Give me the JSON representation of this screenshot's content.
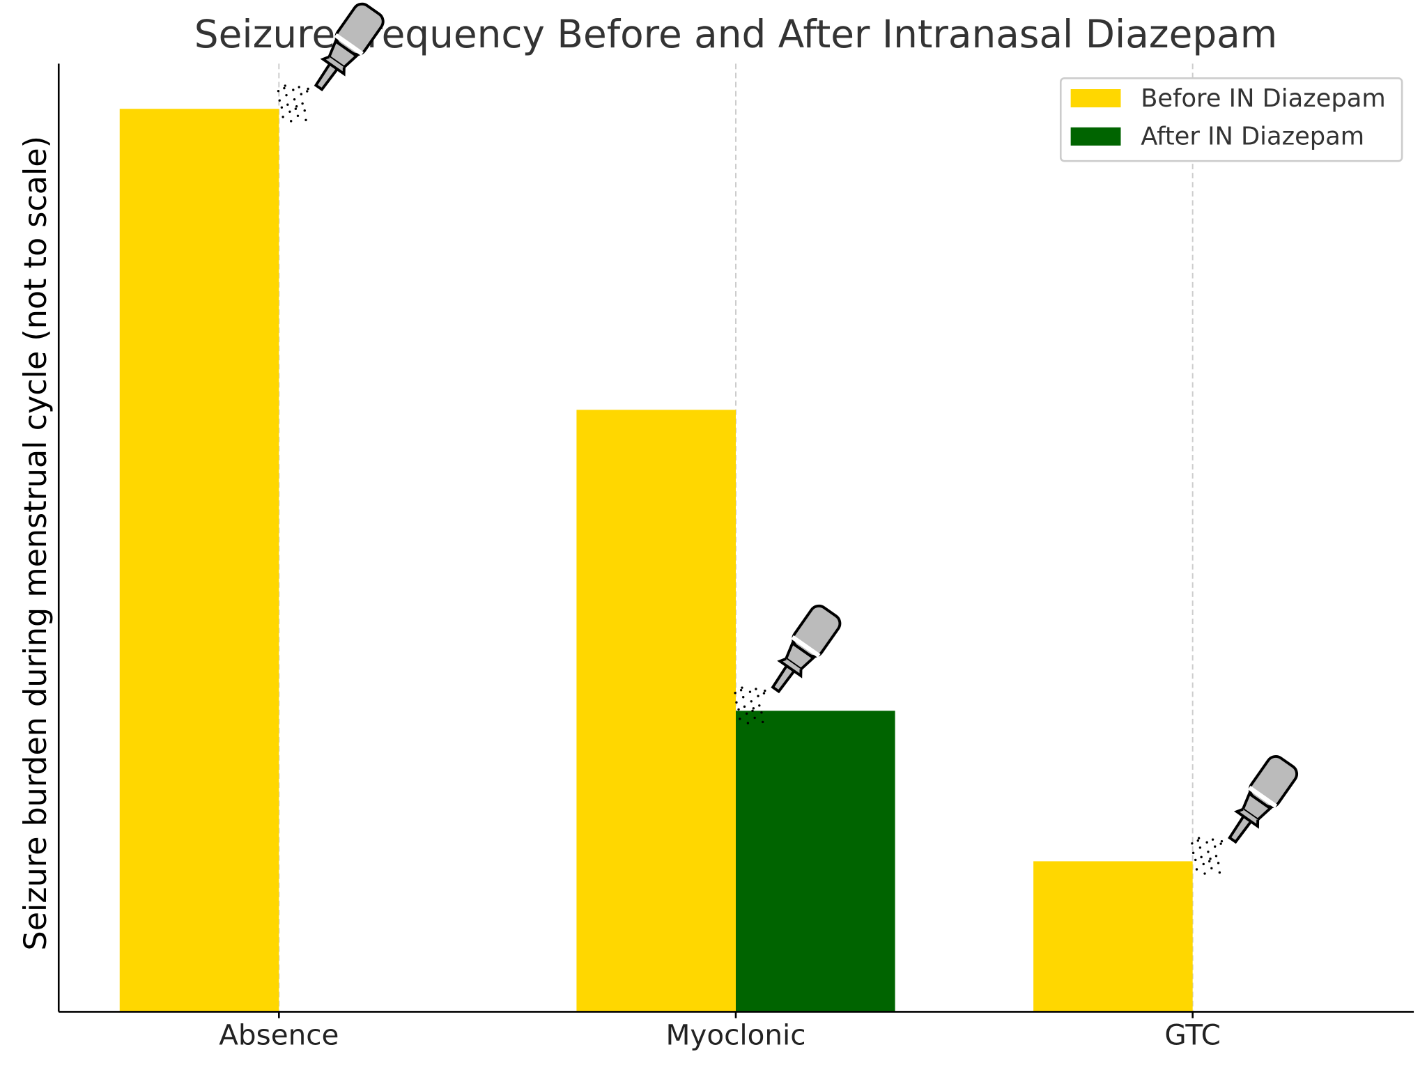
{
  "chart_data": {
    "type": "bar",
    "title": "Seizure Frequency Before and After Intranasal Diazepam",
    "xlabel": "",
    "ylabel": "Seizure burden during menstrual cycle (not to scale)",
    "categories": [
      "Absence",
      "Myoclonic",
      "GTC"
    ],
    "series": [
      {
        "name": "Before IN Diazepam",
        "color": "#FFD700",
        "values": [
          6,
          4,
          1
        ]
      },
      {
        "name": "After IN Diazepam",
        "color": "#006400",
        "values": [
          0,
          2,
          0
        ]
      }
    ],
    "ylim": [
      0,
      6.3
    ],
    "grid": "x-dashed",
    "legend_position": "top-right",
    "annotations": [
      "nasal-spray-icon",
      "nasal-spray-icon",
      "nasal-spray-icon"
    ]
  }
}
